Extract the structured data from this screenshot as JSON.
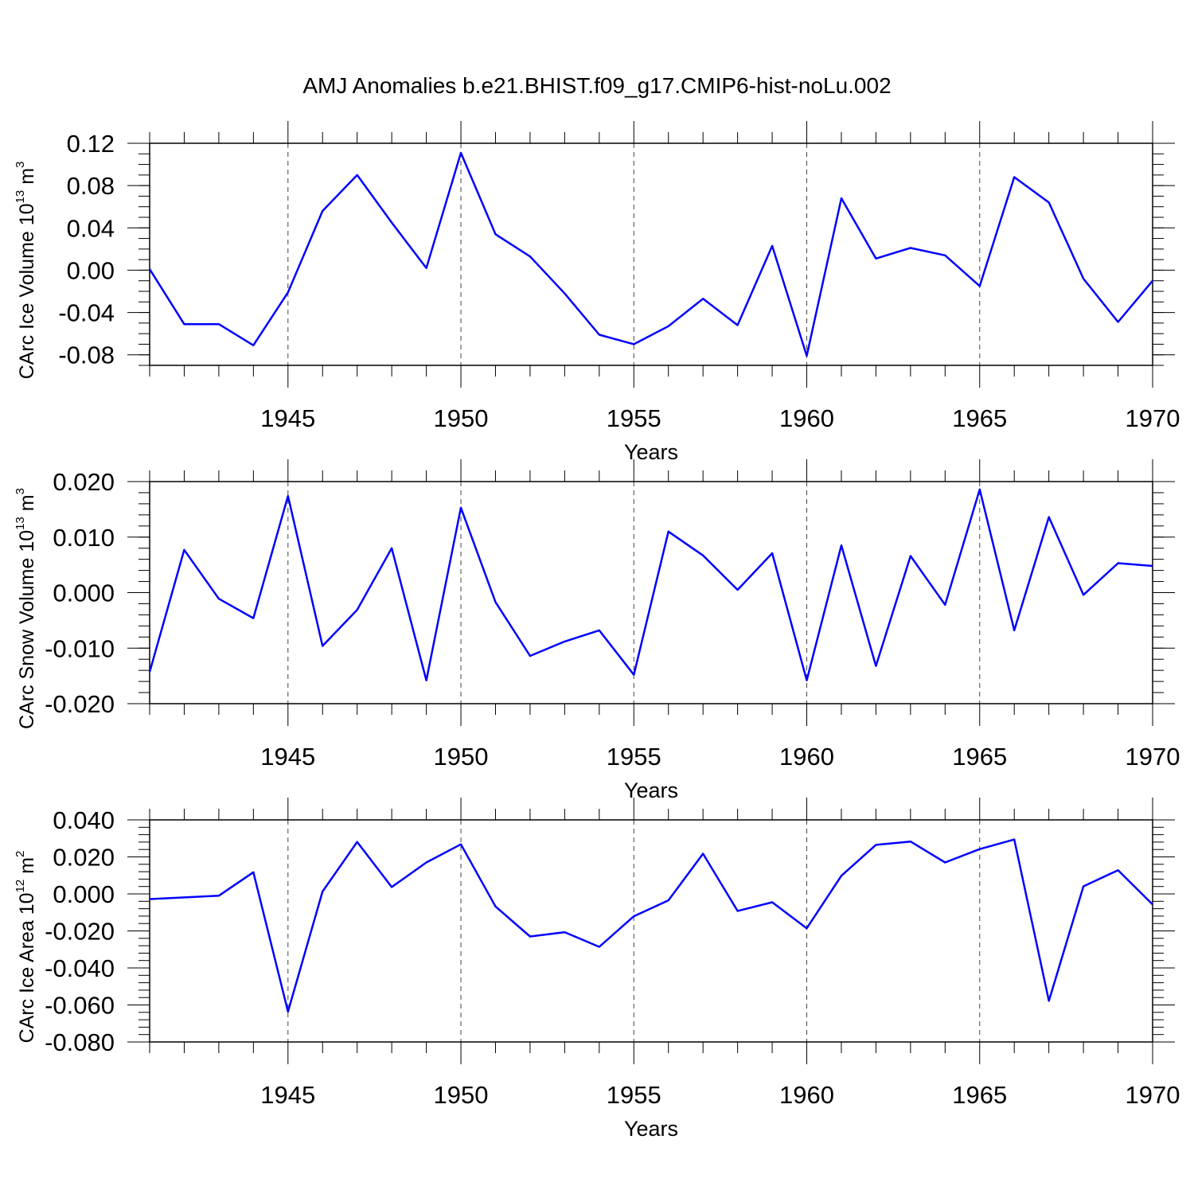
{
  "title": "AMJ Anomalies b.e21.BHIST.f09_g17.CMIP6-hist-noLu.002",
  "colors": {
    "line": "#0000ff",
    "axis": "#000000"
  },
  "chart_data": [
    {
      "type": "line",
      "ylabel": "CArc Ice Volume 10",
      "ylabel_exp": "13",
      "ylabel_unit": " m",
      "ylabel_unit_exp": "3",
      "xlabel": "Years",
      "xlim": [
        1941,
        1970
      ],
      "ylim": [
        -0.09,
        0.12
      ],
      "yticks": [
        0.12,
        0.08,
        0.04,
        0.0,
        -0.04,
        -0.08
      ],
      "ytick_labels": [
        "0.12",
        "0.08",
        "0.04",
        "0.00",
        "-0.04",
        "-0.08"
      ],
      "yminor_step": 0.01,
      "xticks": [
        1945,
        1950,
        1955,
        1960,
        1965,
        1970
      ],
      "xtick_labels": [
        "1945",
        "1950",
        "1955",
        "1960",
        "1965",
        "1970"
      ],
      "x": [
        1941,
        1942,
        1943,
        1944,
        1945,
        1946,
        1947,
        1948,
        1949,
        1950,
        1951,
        1952,
        1953,
        1954,
        1955,
        1956,
        1957,
        1958,
        1959,
        1960,
        1961,
        1962,
        1963,
        1964,
        1965,
        1966,
        1967,
        1968,
        1969,
        1970
      ],
      "series": [
        {
          "name": "CArc Ice Volume",
          "values": [
            0.001,
            -0.051,
            -0.051,
            -0.071,
            -0.021,
            0.056,
            0.09,
            0.045,
            0.002,
            0.111,
            0.034,
            0.013,
            -0.022,
            -0.061,
            -0.07,
            -0.053,
            -0.027,
            -0.052,
            0.023,
            -0.081,
            0.068,
            0.011,
            0.021,
            0.014,
            -0.015,
            0.088,
            0.064,
            -0.008,
            -0.049,
            -0.01
          ]
        }
      ]
    },
    {
      "type": "line",
      "ylabel": "CArc Snow Volume 10",
      "ylabel_exp": "13",
      "ylabel_unit": " m",
      "ylabel_unit_exp": "3",
      "xlabel": "Years",
      "xlim": [
        1941,
        1970
      ],
      "ylim": [
        -0.02,
        0.02
      ],
      "yticks": [
        0.02,
        0.01,
        0.0,
        -0.01,
        -0.02
      ],
      "ytick_labels": [
        "0.020",
        "0.010",
        "0.000",
        "-0.010",
        "-0.020"
      ],
      "yminor_step": 0.002,
      "xticks": [
        1945,
        1950,
        1955,
        1960,
        1965,
        1970
      ],
      "xtick_labels": [
        "1945",
        "1950",
        "1955",
        "1960",
        "1965",
        "1970"
      ],
      "x": [
        1941,
        1942,
        1943,
        1944,
        1945,
        1946,
        1947,
        1948,
        1949,
        1950,
        1951,
        1952,
        1953,
        1954,
        1955,
        1956,
        1957,
        1958,
        1959,
        1960,
        1961,
        1962,
        1963,
        1964,
        1965,
        1966,
        1967,
        1968,
        1969,
        1970
      ],
      "series": [
        {
          "name": "CArc Snow Volume",
          "values": [
            -0.0143,
            0.0077,
            -0.0011,
            -0.0046,
            0.0174,
            -0.0096,
            -0.0031,
            0.008,
            -0.0158,
            0.0153,
            -0.0017,
            -0.0114,
            -0.0088,
            -0.0068,
            -0.0148,
            0.011,
            0.0067,
            0.0005,
            0.0071,
            -0.0158,
            0.0085,
            -0.0132,
            0.0066,
            -0.0022,
            0.0186,
            -0.0068,
            0.0136,
            -0.0004,
            0.0053,
            0.0048
          ]
        }
      ]
    },
    {
      "type": "line",
      "ylabel": "CArc Ice Area 10",
      "ylabel_exp": "12",
      "ylabel_unit": " m",
      "ylabel_unit_exp": "2",
      "xlabel": "Years",
      "xlim": [
        1941,
        1970
      ],
      "ylim": [
        -0.08,
        0.04
      ],
      "yticks": [
        0.04,
        0.02,
        0.0,
        -0.02,
        -0.04,
        -0.06,
        -0.08
      ],
      "ytick_labels": [
        "0.040",
        "0.020",
        "0.000",
        "-0.020",
        "-0.040",
        "-0.060",
        "-0.080"
      ],
      "yminor_step": 0.004,
      "xticks": [
        1945,
        1950,
        1955,
        1960,
        1965,
        1970
      ],
      "xtick_labels": [
        "1945",
        "1950",
        "1955",
        "1960",
        "1965",
        "1970"
      ],
      "x": [
        1941,
        1943,
        1944,
        1945,
        1946,
        1947,
        1948,
        1949,
        1950,
        1951,
        1952,
        1953,
        1954,
        1955,
        1956,
        1957,
        1958,
        1959,
        1960,
        1961,
        1962,
        1963,
        1964,
        1965,
        1966,
        1967,
        1968,
        1969,
        1970
      ],
      "series": [
        {
          "name": "CArc Ice Area",
          "values": [
            -0.0028,
            -0.001,
            0.0117,
            -0.0636,
            0.0013,
            0.0281,
            0.0037,
            0.017,
            0.0268,
            -0.0068,
            -0.023,
            -0.0207,
            -0.0286,
            -0.0121,
            -0.0035,
            0.0217,
            -0.0092,
            -0.0045,
            -0.0186,
            0.0098,
            0.0265,
            0.0283,
            0.017,
            0.0242,
            0.0294,
            -0.0578,
            0.0041,
            0.0128,
            -0.0057
          ]
        }
      ]
    }
  ]
}
